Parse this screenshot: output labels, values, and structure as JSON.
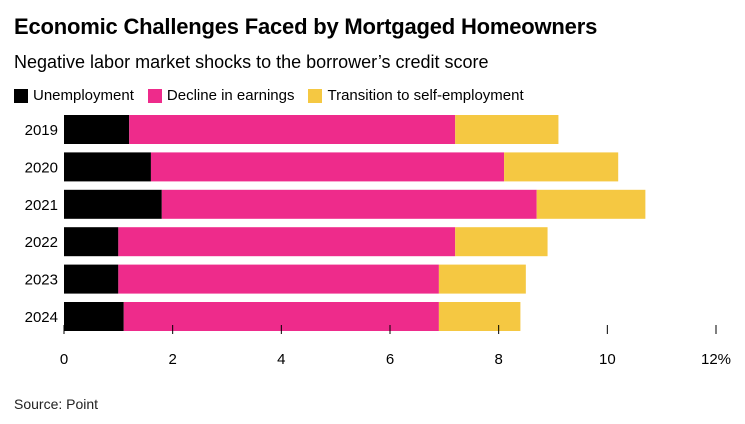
{
  "title": "Economic Challenges Faced by Mortgaged Homeowners",
  "subtitle": "Negative labor market shocks to the borrower’s credit score",
  "source": "Source: Point",
  "colors": {
    "unemployment": "#000000",
    "earnings": "#ee2b8b",
    "self_employment": "#f5c842"
  },
  "chart_data": {
    "type": "bar",
    "orientation": "horizontal",
    "stacked": true,
    "categories": [
      "2019",
      "2020",
      "2021",
      "2022",
      "2023",
      "2024"
    ],
    "series": [
      {
        "name": "Unemployment",
        "values": [
          1.2,
          1.6,
          1.8,
          1.0,
          1.0,
          1.1
        ]
      },
      {
        "name": "Decline in earnings",
        "values": [
          6.0,
          6.5,
          6.9,
          6.2,
          5.9,
          5.8
        ]
      },
      {
        "name": "Transition to self-employment",
        "values": [
          1.9,
          2.1,
          2.0,
          1.7,
          1.6,
          1.5
        ]
      }
    ],
    "xlim": [
      0,
      12
    ],
    "xticks": [
      "0",
      "2",
      "4",
      "6",
      "8",
      "10",
      "12%"
    ],
    "legend_position": "top-left",
    "grid": false
  }
}
